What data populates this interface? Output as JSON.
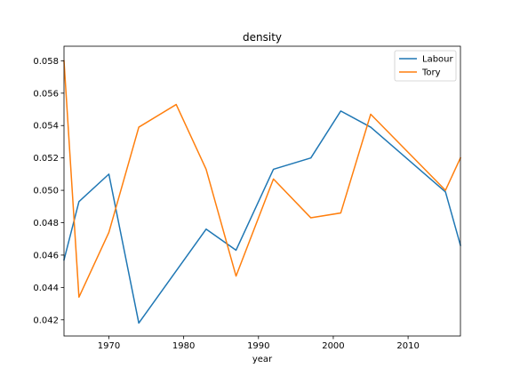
{
  "chart_data": {
    "type": "line",
    "title": "density",
    "xlabel": "year",
    "ylabel": "",
    "xlim": [
      1964,
      2017
    ],
    "ylim": [
      0.041,
      0.0589
    ],
    "xticks": [
      1970,
      1980,
      1990,
      2000,
      2010
    ],
    "xtick_labels": [
      "1970",
      "1980",
      "1990",
      "2000",
      "2010"
    ],
    "yticks": [
      0.042,
      0.044,
      0.046,
      0.048,
      0.05,
      0.052,
      0.054,
      0.056,
      0.058
    ],
    "ytick_labels": [
      "0.042",
      "0.044",
      "0.046",
      "0.048",
      "0.050",
      "0.052",
      "0.054",
      "0.056",
      "0.058"
    ],
    "legend_position": "top-right",
    "grid": false,
    "series": [
      {
        "name": "Labour",
        "color": "#1f77b4",
        "x": [
          1964,
          1966,
          1970,
          1974,
          1983,
          1987,
          1992,
          1997,
          2001,
          2005,
          2015,
          2017
        ],
        "y": [
          0.0457,
          0.0493,
          0.051,
          0.0418,
          0.0476,
          0.0463,
          0.0513,
          0.052,
          0.0549,
          0.0539,
          0.0499,
          0.0466
        ]
      },
      {
        "name": "Tory",
        "color": "#ff7f0e",
        "x": [
          1964,
          1966,
          1970,
          1974,
          1979,
          1983,
          1987,
          1992,
          1997,
          2001,
          2005,
          2015,
          2017
        ],
        "y": [
          0.058,
          0.0434,
          0.0474,
          0.0539,
          0.0553,
          0.0513,
          0.0447,
          0.0507,
          0.0483,
          0.0486,
          0.0547,
          0.05,
          0.052
        ]
      }
    ]
  }
}
